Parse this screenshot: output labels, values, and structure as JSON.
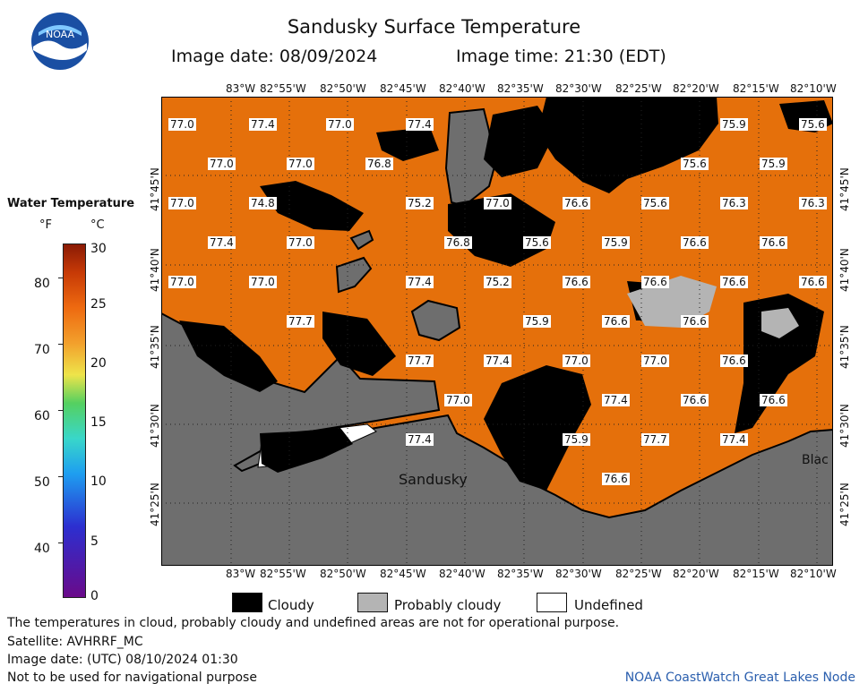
{
  "title": "Sandusky Surface Temperature",
  "image_date_label": "Image date: 08/09/2024",
  "image_time_label": "Image time: 21:30 (EDT)",
  "logo_text": "NOAA",
  "legend": {
    "title": "Water Temperature",
    "unit_f": "°F",
    "unit_c": "°C",
    "f_ticks": [
      "80",
      "70",
      "60",
      "50",
      "40"
    ],
    "c_ticks": [
      "30",
      "25",
      "20",
      "15",
      "10",
      "5",
      "0"
    ]
  },
  "lon_labels": [
    "83°W",
    "82°55'W",
    "82°50'W",
    "82°45'W",
    "82°40'W",
    "82°35'W",
    "82°30'W",
    "82°25'W",
    "82°20'W",
    "82°15'W",
    "82°10'W"
  ],
  "lat_labels": [
    "41°45'N",
    "41°40'N",
    "41°35'N",
    "41°30'N",
    "41°25'N"
  ],
  "place_labels": [
    "Sandusky",
    "Blac"
  ],
  "temperature_labels": [
    "77.0",
    "77.4",
    "77.0",
    "77.4",
    "75.9",
    "75.6",
    "77.0",
    "77.0",
    "76.8",
    "75.6",
    "75.9",
    "77.0",
    "74.8",
    "75.2",
    "77.0",
    "76.6",
    "75.6",
    "76.3",
    "76.3",
    "77.4",
    "77.0",
    "76.8",
    "75.6",
    "75.9",
    "76.6",
    "76.6",
    "77.0",
    "77.0",
    "77.4",
    "75.2",
    "76.6",
    "76.6",
    "76.6",
    "76.6",
    "77.7",
    "75.9",
    "76.6",
    "76.6",
    "77.7",
    "77.4",
    "77.0",
    "77.0",
    "76.6",
    "77.0",
    "77.4",
    "76.6",
    "76.6",
    "77.4",
    "75.9",
    "77.7",
    "77.4",
    "76.6"
  ],
  "key": {
    "cloudy": "Cloudy",
    "probably_cloudy": "Probably cloudy",
    "undefined": "Undefined"
  },
  "colors": {
    "water": "#e8720c",
    "land": "#6e6e6e",
    "cloud": "#000000",
    "probably_cloudy": "#b4b4b4"
  },
  "notes": {
    "disclaimer": "The temperatures in cloud, probably cloudy and undefined areas are not for operational purpose.",
    "satellite": "Satellite: AVHRRF_MC",
    "utc_date": "Image date: (UTC) 08/10/2024  01:30",
    "navigation": "Not to be used for navigational purpose"
  },
  "credit": "NOAA CoastWatch Great Lakes Node"
}
